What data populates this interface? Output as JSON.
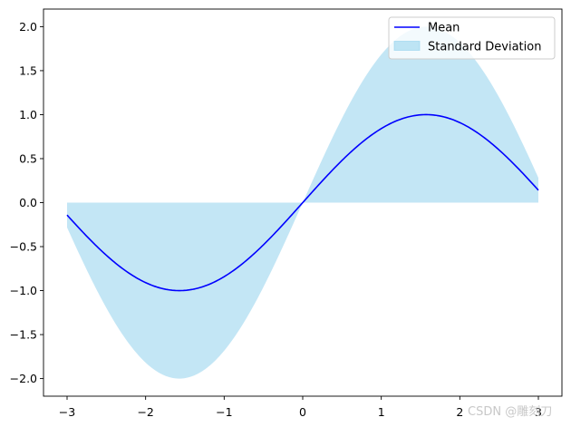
{
  "chart_data": {
    "type": "area",
    "title": "",
    "xlabel": "",
    "ylabel": "",
    "xlim": [
      -3.3,
      3.3
    ],
    "ylim": [
      -2.2,
      2.2
    ],
    "xticks": [
      -3,
      -2,
      -1,
      0,
      1,
      2,
      3
    ],
    "xtick_labels": [
      "−3",
      "−2",
      "−1",
      "0",
      "1",
      "2",
      "3"
    ],
    "yticks": [
      -2.0,
      -1.5,
      -1.0,
      -0.5,
      0.0,
      0.5,
      1.0,
      1.5,
      2.0
    ],
    "ytick_labels": [
      "−2.0",
      "−1.5",
      "−1.0",
      "−0.5",
      "0.0",
      "0.5",
      "1.0",
      "1.5",
      "2.0"
    ],
    "x_range": [
      -3,
      3
    ],
    "series": [
      {
        "name": "Mean",
        "kind": "line",
        "function": "sin(x)",
        "color": "#0000ff"
      },
      {
        "name": "Standard Deviation",
        "kind": "fill_between",
        "lower": "min(0, 2*sin(x))",
        "upper": "max(0, 2*sin(x))",
        "color": "#87ceeb",
        "opacity": 0.5
      }
    ],
    "legend": {
      "position": "top-right",
      "entries": [
        "Mean",
        "Standard Deviation"
      ]
    },
    "grid": false
  },
  "watermark": "CSDN @雕刻刀"
}
